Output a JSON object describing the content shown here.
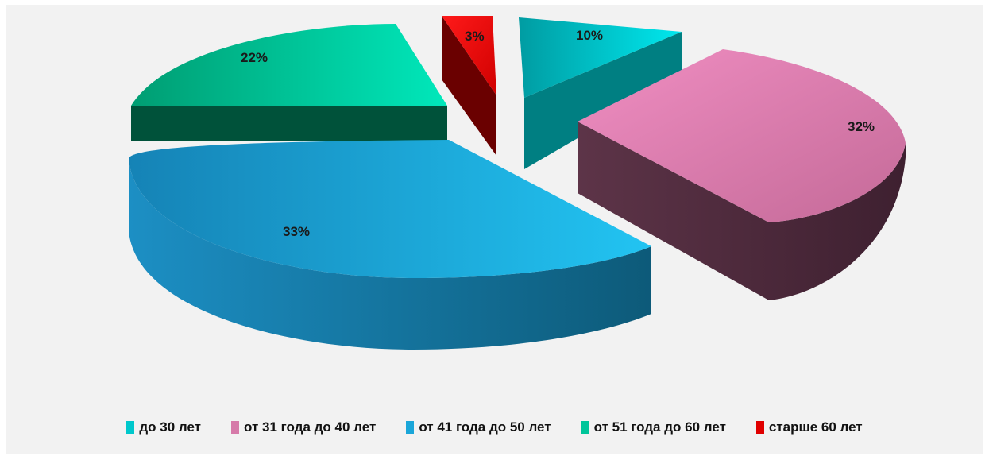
{
  "chart_data": {
    "type": "pie",
    "title": "",
    "slices": [
      {
        "label": "до 30 лет",
        "value": 10,
        "display": "10%",
        "color": "#00c8cc"
      },
      {
        "label": "от 31 года до 40 лет",
        "value": 32,
        "display": "32%",
        "color": "#d67aa9"
      },
      {
        "label": "от 41 года до 50 лет",
        "value": 33,
        "display": "33%",
        "color": "#1aa6d9"
      },
      {
        "label": "от 51 года до 60 лет",
        "value": 22,
        "display": "22%",
        "color": "#00c59a"
      },
      {
        "label": "старше 60 лет",
        "value": 3,
        "display": "3%",
        "color": "#e00000"
      }
    ],
    "legend_position": "bottom",
    "style": "3d-exploded"
  }
}
